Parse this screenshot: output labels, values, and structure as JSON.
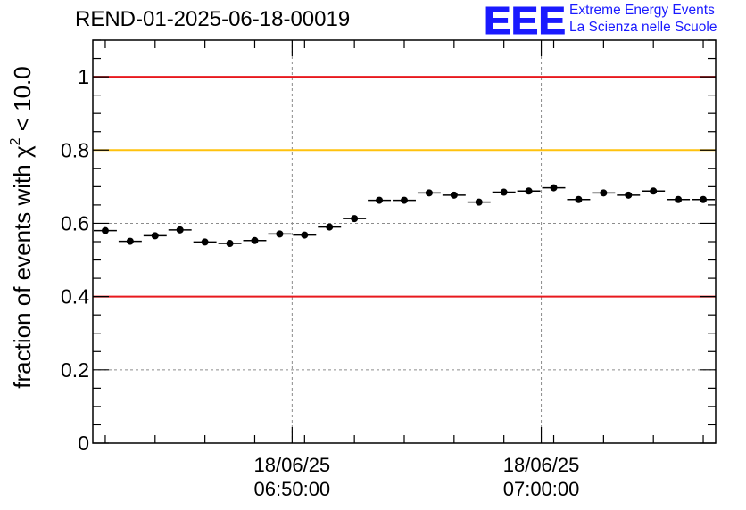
{
  "header": {
    "run_id": "REND-01-2025-06-18-00019",
    "logo_letters": "EEE",
    "logo_line1": "Extreme Energy Events",
    "logo_line2": "La Scienza nelle Scuole"
  },
  "chart_data": {
    "type": "scatter",
    "title": "REND-01-2025-06-18-00019",
    "ylabel_prefix": "fraction of events with χ",
    "ylabel_sup": "2",
    "ylabel_suffix": " < 10.0",
    "ylim": [
      0,
      1.1
    ],
    "xlim": [
      0,
      25
    ],
    "y_ticks": [
      0,
      0.2,
      0.4,
      0.6,
      0.8,
      1
    ],
    "y_tick_labels": [
      "0",
      "0.2",
      "0.4",
      "0.6",
      "0.8",
      "1"
    ],
    "x_major_ticks": [
      {
        "x": 8,
        "date": "18/06/25",
        "time": "06:50:00"
      },
      {
        "x": 18,
        "date": "18/06/25",
        "time": "07:00:00"
      }
    ],
    "grid": true,
    "reference_lines": [
      {
        "y": 1.0,
        "color": "#e8191e"
      },
      {
        "y": 0.8,
        "color": "#ffc20e"
      },
      {
        "y": 0.4,
        "color": "#e8191e"
      }
    ],
    "points": {
      "x": [
        0.5,
        1.5,
        2.5,
        3.5,
        4.5,
        5.5,
        6.5,
        7.5,
        8.5,
        9.5,
        10.5,
        11.5,
        12.5,
        13.5,
        14.5,
        15.5,
        16.5,
        17.5,
        18.5,
        19.5,
        20.5,
        21.5,
        22.5,
        23.5,
        24.5
      ],
      "y": [
        0.58,
        0.551,
        0.566,
        0.582,
        0.549,
        0.545,
        0.553,
        0.571,
        0.568,
        0.59,
        0.613,
        0.663,
        0.663,
        0.683,
        0.677,
        0.658,
        0.685,
        0.688,
        0.697,
        0.665,
        0.683,
        0.677,
        0.688,
        0.665,
        0.665
      ],
      "x_half_width": 0.5,
      "y_err": 0.006
    },
    "colors": {
      "points": "#000000",
      "grid": "#8c8c8c",
      "logo": "#1a1aff"
    }
  }
}
